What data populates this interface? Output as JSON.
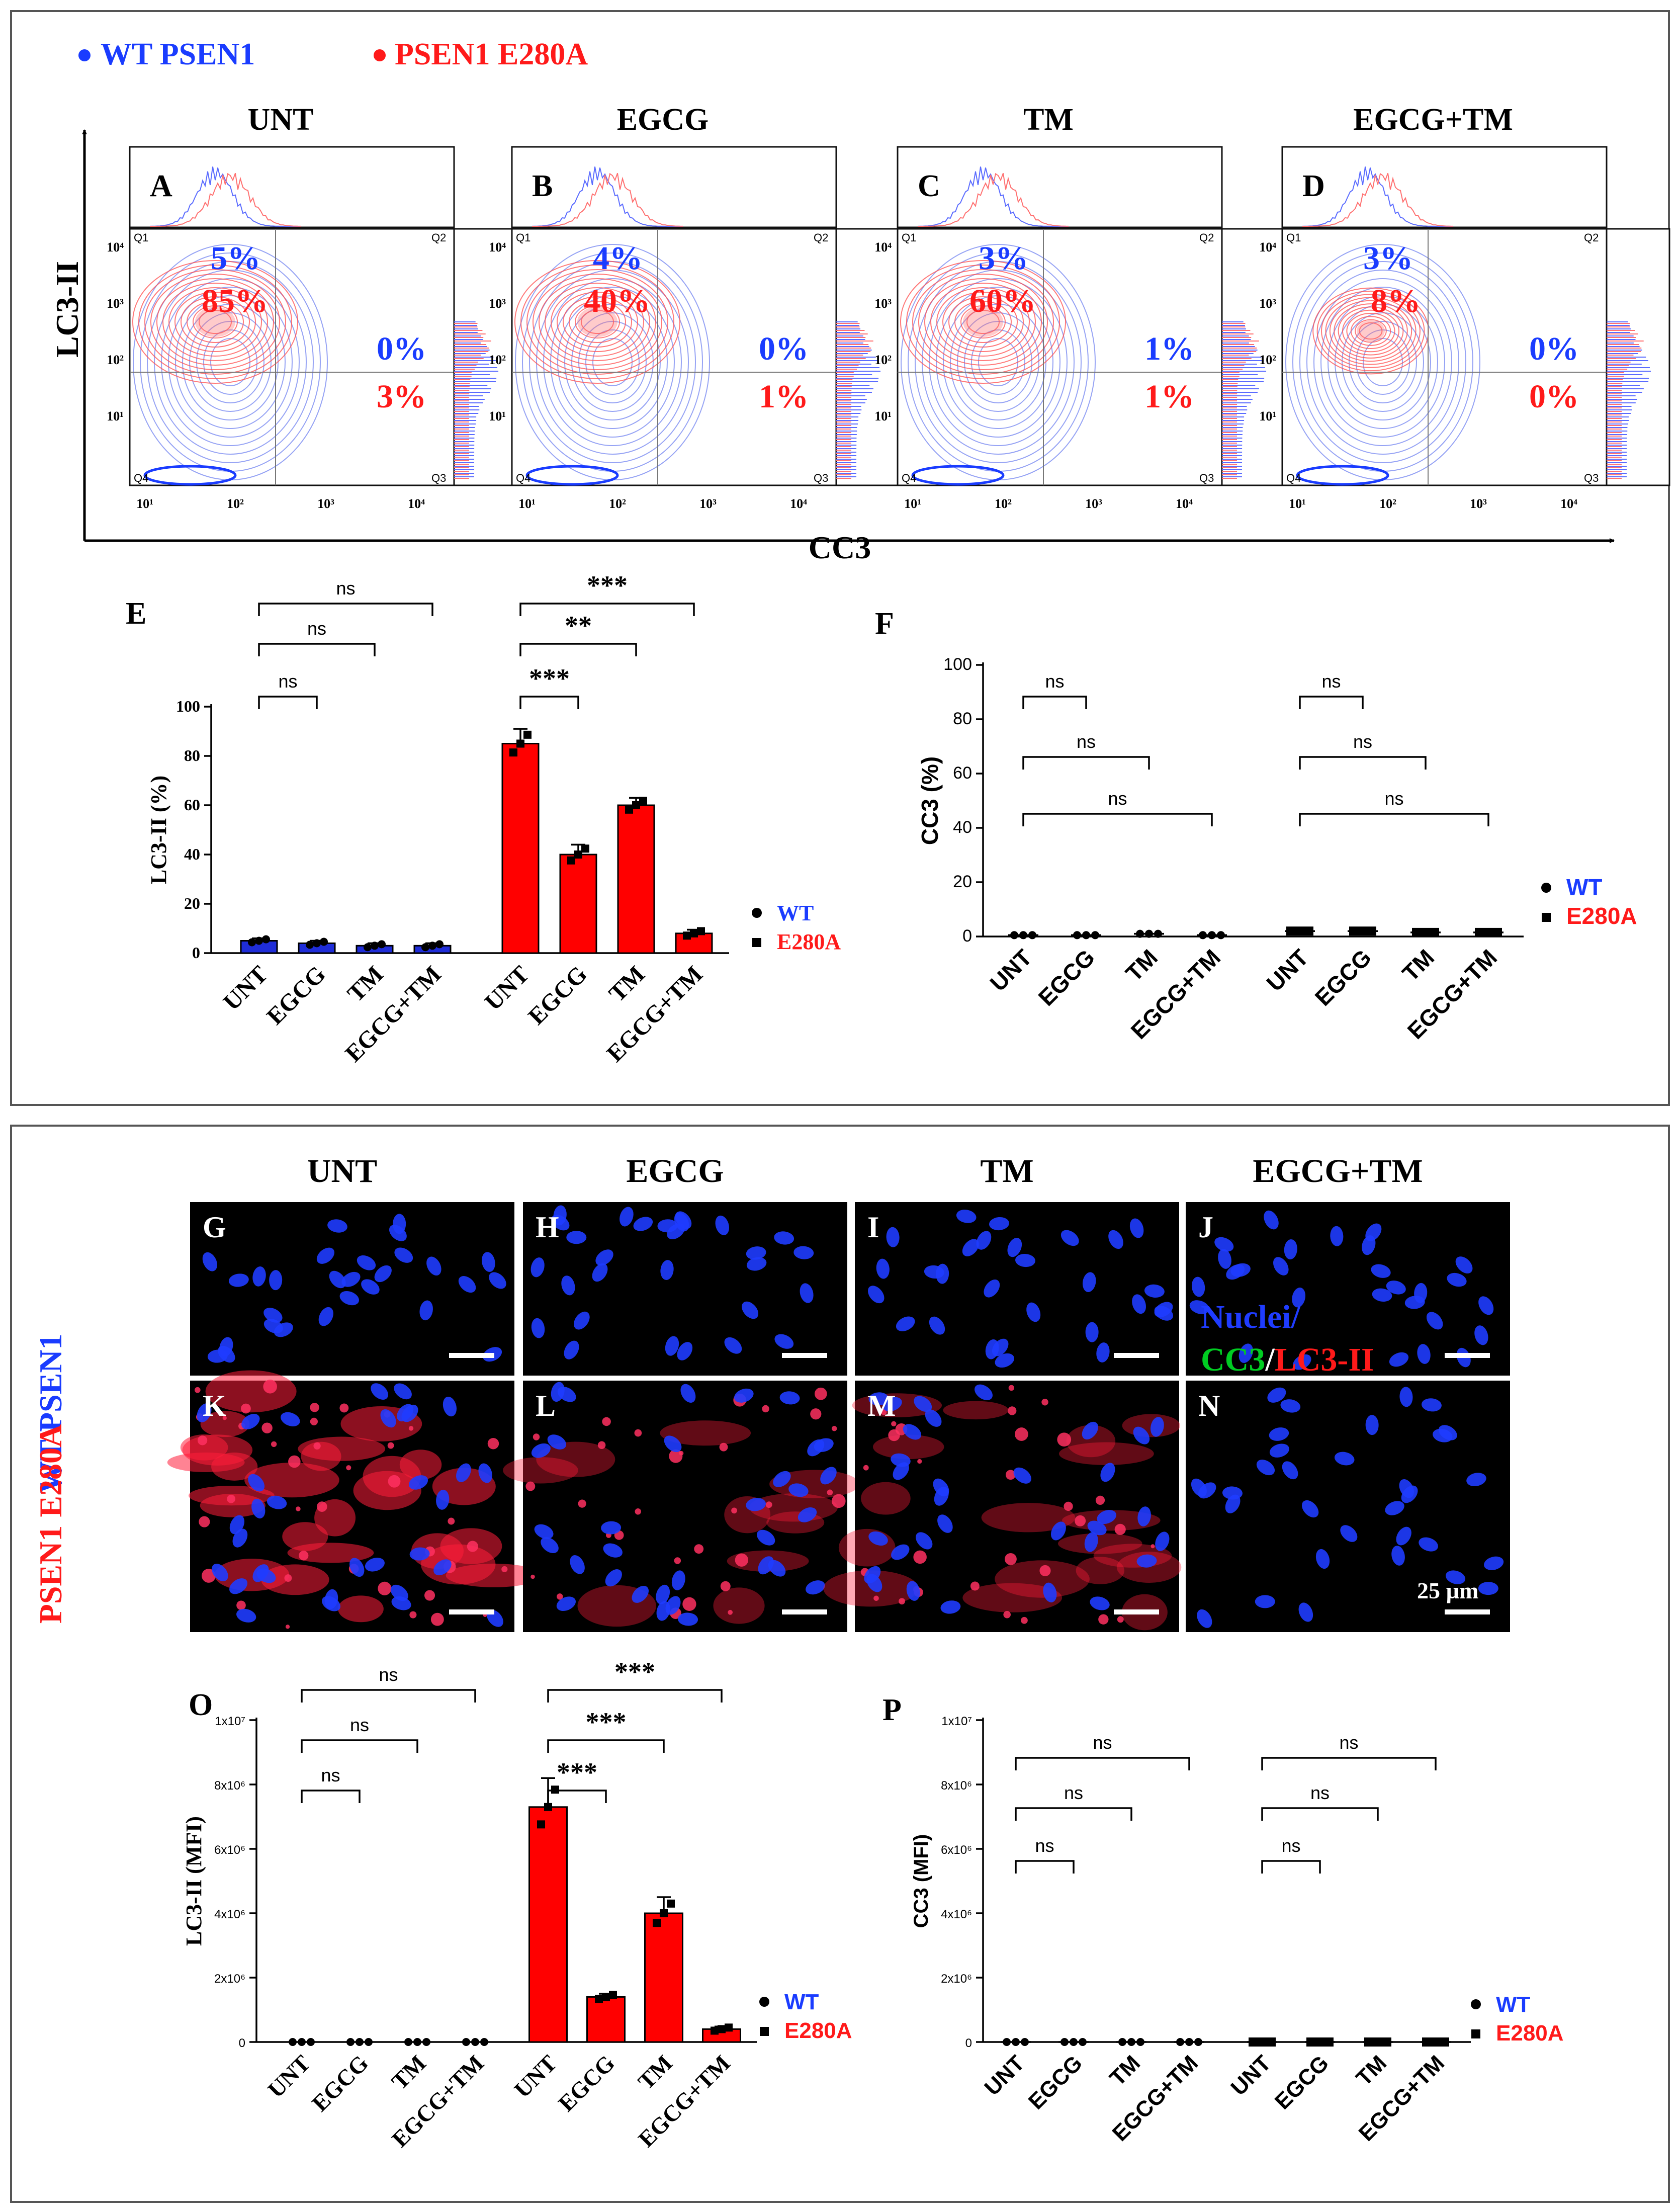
{
  "colors": {
    "wt": "#1a3cff",
    "e280a": "#ff1a1a",
    "bar_red": "#ff0000",
    "bar_blue": "#1f2dd8",
    "micro_bg": "#000000",
    "green": "#00cc22"
  },
  "legend_top": {
    "wt": "WT PSEN1",
    "mut": "PSEN1 E280A"
  },
  "treatments": [
    "UNT",
    "EGCG",
    "TM",
    "EGCG+TM"
  ],
  "flow": {
    "y_label": "LC3-II",
    "x_label": "CC3",
    "panels": [
      {
        "letter": "A",
        "title": "UNT",
        "q2_wt": "5%",
        "q2_mut": "85%",
        "q3_wt": "0%",
        "q3_mut": "3%"
      },
      {
        "letter": "B",
        "title": "EGCG",
        "q2_wt": "4%",
        "q2_mut": "40%",
        "q3_wt": "0%",
        "q3_mut": "1%"
      },
      {
        "letter": "C",
        "title": "TM",
        "q2_wt": "3%",
        "q2_mut": "60%",
        "q3_wt": "1%",
        "q3_mut": "1%"
      },
      {
        "letter": "D",
        "title": "EGCG+TM",
        "q2_wt": "3%",
        "q2_mut": "8%",
        "q3_wt": "0%",
        "q3_mut": "0%"
      }
    ],
    "quadrants": [
      "Q1",
      "Q2",
      "Q3",
      "Q4"
    ],
    "y_ticks": [
      "10⁴",
      "10³",
      "10²",
      "10¹"
    ],
    "x_ticks": [
      "10¹",
      "10²",
      "10³",
      "10⁴"
    ]
  },
  "chart_data": [
    {
      "panel": "E",
      "type": "bar",
      "ylabel": "LC3-II (%)",
      "ylim": [
        0,
        100
      ],
      "yticks": [
        "0",
        "20",
        "40",
        "60",
        "80",
        "100"
      ],
      "categories": [
        "UNT",
        "EGCG",
        "TM",
        "EGCG+TM"
      ],
      "series": [
        {
          "name": "WT",
          "values": [
            5,
            4,
            3,
            3
          ],
          "errors": [
            1,
            1,
            1,
            1
          ]
        },
        {
          "name": "E280A",
          "values": [
            85,
            40,
            60,
            8
          ],
          "errors": [
            6,
            4,
            3,
            1.5
          ]
        }
      ],
      "comparisons_wt": [
        "ns",
        "ns",
        "ns"
      ],
      "comparisons_mut": [
        "***",
        "**",
        "***"
      ],
      "legend": [
        "WT",
        "E280A"
      ]
    },
    {
      "panel": "F",
      "type": "scatter",
      "ylabel": "CC3 (%)",
      "ylim": [
        0,
        100
      ],
      "yticks": [
        "0",
        "20",
        "40",
        "60",
        "80",
        "100"
      ],
      "categories": [
        "UNT",
        "EGCG",
        "TM",
        "EGCG+TM"
      ],
      "series": [
        {
          "name": "WT",
          "values": [
            0.5,
            0.5,
            1,
            0.5
          ]
        },
        {
          "name": "E280A",
          "values": [
            2,
            2,
            1.5,
            1.5
          ]
        }
      ],
      "comparisons_wt": [
        "ns",
        "ns",
        "ns"
      ],
      "comparisons_mut": [
        "ns",
        "ns",
        "ns"
      ],
      "legend": [
        "WT",
        "E280A"
      ]
    },
    {
      "panel": "O",
      "type": "bar",
      "ylabel": "LC3-II (MFI)",
      "ylim": [
        0,
        10000000
      ],
      "yticks": [
        "0",
        "2x10⁶",
        "4x10⁶",
        "6x10⁶",
        "8x10⁶",
        "1x10⁷"
      ],
      "categories": [
        "UNT",
        "EGCG",
        "TM",
        "EGCG+TM"
      ],
      "series": [
        {
          "name": "WT",
          "values": [
            0,
            0,
            0,
            0
          ],
          "errors": [
            0,
            0,
            0,
            0
          ]
        },
        {
          "name": "E280A",
          "values": [
            7300000,
            1400000,
            4000000,
            400000
          ],
          "errors": [
            900000,
            100000,
            500000,
            80000
          ]
        }
      ],
      "comparisons_wt": [
        "ns",
        "ns",
        "ns"
      ],
      "comparisons_mut": [
        "***",
        "***",
        "***"
      ],
      "legend": [
        "WT",
        "E280A"
      ]
    },
    {
      "panel": "P",
      "type": "scatter",
      "ylabel": "CC3 (MFI)",
      "ylim": [
        0,
        10000000
      ],
      "yticks": [
        "0",
        "2x10⁶",
        "4x10⁶",
        "6x10⁶",
        "8x10⁶",
        "1x10⁷"
      ],
      "categories": [
        "UNT",
        "EGCG",
        "TM",
        "EGCG+TM"
      ],
      "series": [
        {
          "name": "WT",
          "values": [
            0,
            0,
            0,
            0
          ]
        },
        {
          "name": "E280A",
          "values": [
            0,
            0,
            0,
            0
          ]
        }
      ],
      "comparisons_wt": [
        "ns",
        "ns",
        "ns"
      ],
      "comparisons_mut": [
        "ns",
        "ns",
        "ns"
      ],
      "legend": [
        "WT",
        "E280A"
      ]
    }
  ],
  "microscopy": {
    "row_wt": "WT PSEN1",
    "row_mut": "PSEN1 E280A",
    "titles": [
      "UNT",
      "EGCG",
      "TM",
      "EGCG+TM"
    ],
    "letters_wt": [
      "G",
      "H",
      "I",
      "J"
    ],
    "letters_mut": [
      "K",
      "L",
      "M",
      "N"
    ],
    "stain_nuclei": "Nuclei/",
    "stain_cc3": "CC3",
    "stain_sep": "/",
    "stain_lc3": "LC3-II",
    "scale": "25 µm"
  }
}
